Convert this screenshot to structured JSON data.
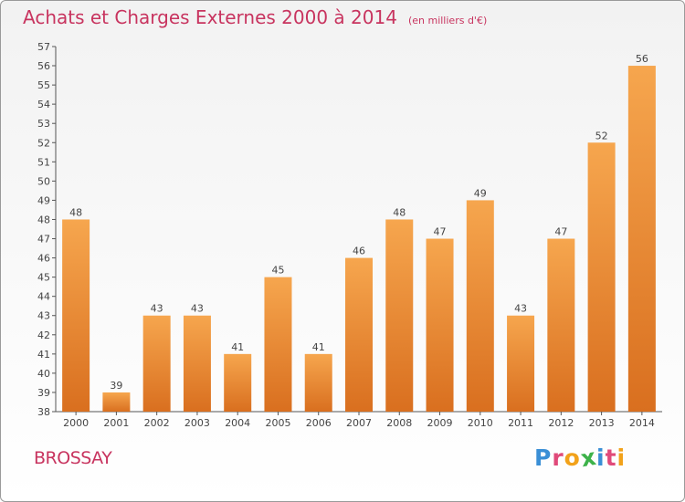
{
  "title": "Achats et Charges Externes 2000 à 2014",
  "unit": "(en milliers d'€)",
  "region": "BROSSAY",
  "brand": "Proxiti",
  "colors": {
    "title": "#c8345f",
    "bar_top": "#f6a64e",
    "bar_bottom": "#d96f1f",
    "axis": "#555555"
  },
  "chart_data": {
    "type": "bar",
    "categories": [
      "2000",
      "2001",
      "2002",
      "2003",
      "2004",
      "2005",
      "2006",
      "2007",
      "2008",
      "2009",
      "2010",
      "2011",
      "2012",
      "2013",
      "2014"
    ],
    "values": [
      48,
      39,
      43,
      43,
      41,
      45,
      41,
      46,
      48,
      47,
      49,
      43,
      47,
      52,
      56
    ],
    "ylim": [
      38,
      57
    ],
    "yticks": [
      38,
      39,
      40,
      41,
      42,
      43,
      44,
      45,
      46,
      47,
      48,
      49,
      50,
      51,
      52,
      53,
      54,
      55,
      56,
      57
    ],
    "grid": false
  }
}
